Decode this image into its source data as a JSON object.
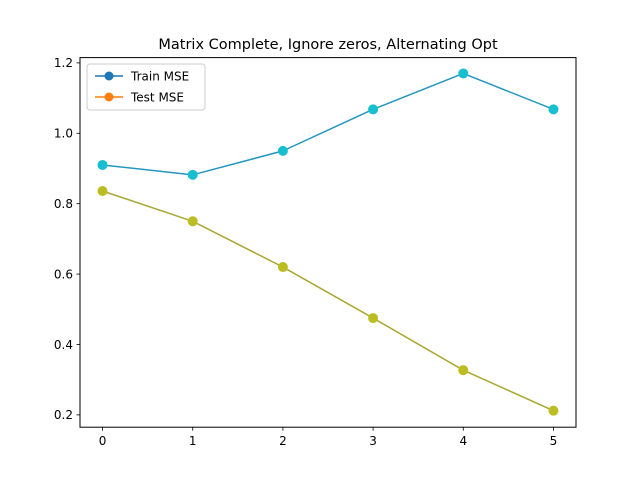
{
  "chart_data": {
    "type": "line",
    "title": "Matrix Complete, Ignore zeros, Alternating Opt",
    "xlabel": "",
    "ylabel": "",
    "x": [
      0,
      1,
      2,
      3,
      4,
      5
    ],
    "xlim": [
      -0.25,
      5.25
    ],
    "ylim": [
      0.165,
      1.215
    ],
    "xticks": [
      0,
      1,
      2,
      3,
      4,
      5
    ],
    "yticks": [
      0.2,
      0.4,
      0.6,
      0.8,
      1.0,
      1.2
    ],
    "ytick_labels": [
      "0.2",
      "0.4",
      "0.6",
      "0.8",
      "1.0",
      "1.2"
    ],
    "grid": false,
    "legend_position": "upper-left",
    "series": [
      {
        "name": "Train MSE",
        "legend_color": "#1f77b4",
        "line_color": "#2596be",
        "marker_color": "#17becf",
        "values": [
          0.91,
          0.882,
          0.95,
          1.068,
          1.17,
          1.068
        ]
      },
      {
        "name": "Test MSE",
        "legend_color": "#ff7f0e",
        "line_color": "#a8a832",
        "marker_color": "#bcbd22",
        "values": [
          0.836,
          0.75,
          0.62,
          0.475,
          0.327,
          0.212
        ]
      }
    ]
  }
}
